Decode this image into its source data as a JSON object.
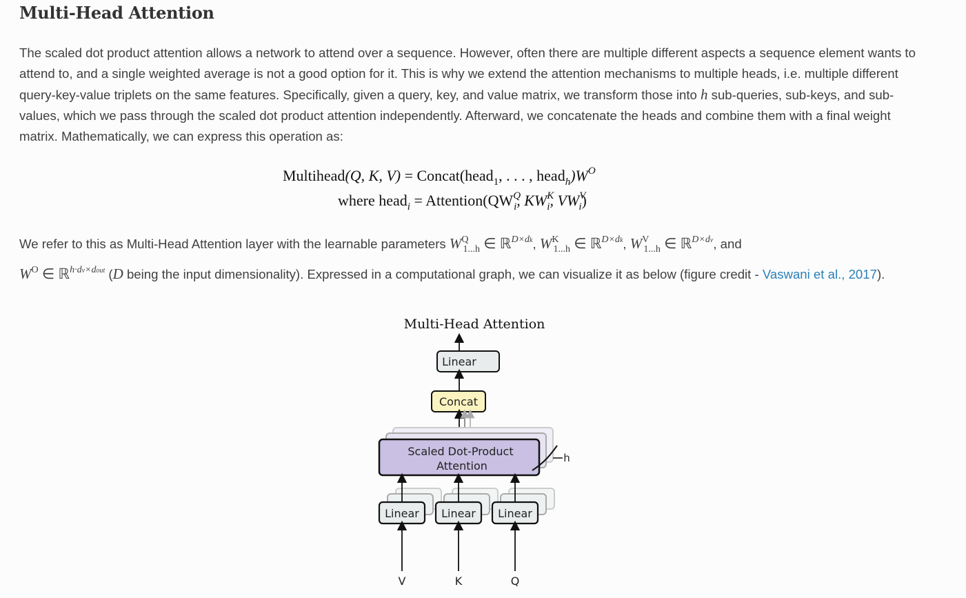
{
  "section": {
    "title": "Multi-Head Attention"
  },
  "intro": {
    "text": "The scaled dot product attention allows a network to attend over a sequence. However, often there are multiple different aspects a sequence element wants to attend to, and a single weighted average is not a good option for it. This is why we extend the attention mechanisms to multiple heads, i.e. multiple different query-key-value triplets on the same features. Specifically, given a query, key, and value matrix, we transform those into ",
    "symbol": "h",
    "text_after": " sub-queries, sub-keys, and sub-values, which we pass through the scaled dot product attention independently. Afterward, we concatenate the heads and combine them with a final weight matrix. Mathematically, we can express this operation as:"
  },
  "equation": {
    "line1_lhs": "Multihead",
    "line1_args": "(Q, K, V)",
    "line1_eq": " = Concat(head",
    "line1_sub1": "1",
    "line1_mid": ", . . . , head",
    "line1_subh": "h",
    "line1_close": ")W",
    "line1_supO": "O",
    "line2_where": "where head",
    "line2_subi": "i",
    "line2_eq": " = Attention(QW",
    "line2_supQ": "Q",
    "line2_subQ": "i",
    "line2_k": ", KW",
    "line2_supK": "K",
    "line2_subK": "i",
    "line2_v": ", VW",
    "line2_supV": "V",
    "line2_subV": "i",
    "line2_close": ")"
  },
  "params": {
    "text_start": "We refer to this as Multi-Head Attention layer with the learnable parameters ",
    "wq": "W",
    "wq_sup": "Q",
    "wq_sub": "1...h",
    "in_r": " ∈ ℝ",
    "dxdk": "D×d",
    "dk_sub": "k",
    "comma": ", ",
    "wk_sup": "K",
    "wv_sup": "V",
    "dv_sub": "v",
    "and": ", and",
    "wo_sup": "O",
    "wo_dims": "h·d",
    "wo_dims2": "×d",
    "dout": "out",
    "d_symbol": "D",
    "text_mid": " being the input dimensionality). Expressed in a computational graph, we can visualize it as below (figure credit - ",
    "link": "Vaswani et al., 2017",
    "text_end": ")."
  },
  "figure": {
    "title": "Multi-Head Attention",
    "linear_top": "Linear",
    "concat": "Concat",
    "attention_line1": "Scaled Dot-Product",
    "attention_line2": "Attention",
    "h_label": "h",
    "linear_v": "Linear",
    "linear_k": "Linear",
    "linear_q": "Linear",
    "input_v": "V",
    "input_k": "K",
    "input_q": "Q",
    "colors": {
      "linear_fill": "#e8ecec",
      "concat_fill": "#fbf3c0",
      "attention_fill": "#c9c0e3"
    }
  }
}
